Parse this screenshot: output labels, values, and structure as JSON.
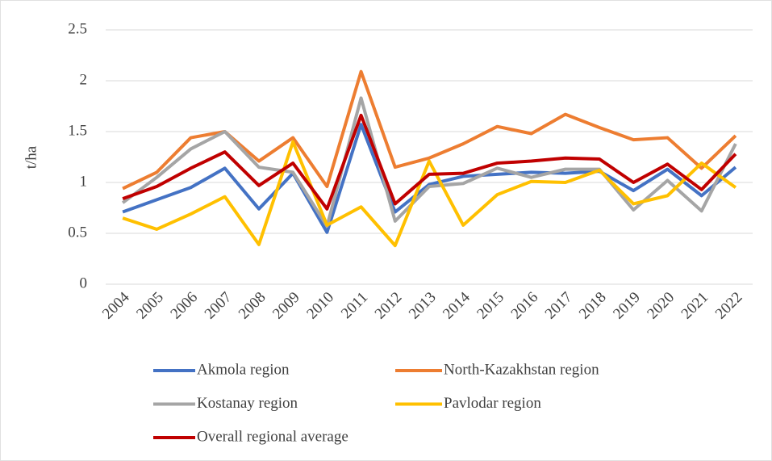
{
  "chart_data": {
    "type": "line",
    "y_label": "t/ha",
    "categories": [
      "2004",
      "2005",
      "2006",
      "2007",
      "2008",
      "2009",
      "2010",
      "2011",
      "2012",
      "2013",
      "2014",
      "2015",
      "2016",
      "2017",
      "2018",
      "2019",
      "2020",
      "2021",
      "2022"
    ],
    "ylim": [
      0,
      2.5
    ],
    "yticks": [
      0,
      0.5,
      1,
      1.5,
      2,
      2.5
    ],
    "grid": true,
    "legend": "bottom",
    "series": [
      {
        "name": "Akmola region",
        "color": "#4472c4",
        "values": [
          0.71,
          0.83,
          0.95,
          1.14,
          0.74,
          1.09,
          0.51,
          1.57,
          0.71,
          0.98,
          1.06,
          1.08,
          1.1,
          1.09,
          1.11,
          0.92,
          1.13,
          0.87,
          1.15
        ]
      },
      {
        "name": "North-Kazakhstan region",
        "color": "#ed7d31",
        "values": [
          0.94,
          1.1,
          1.44,
          1.5,
          1.21,
          1.44,
          0.96,
          2.09,
          1.15,
          1.24,
          1.38,
          1.55,
          1.48,
          1.67,
          1.54,
          1.42,
          1.44,
          1.14,
          1.46
        ]
      },
      {
        "name": "Kostanay region",
        "color": "#a5a5a5",
        "values": [
          0.8,
          1.05,
          1.33,
          1.5,
          1.15,
          1.1,
          0.57,
          1.83,
          0.62,
          0.96,
          0.99,
          1.14,
          1.05,
          1.13,
          1.13,
          0.73,
          1.02,
          0.72,
          1.38
        ]
      },
      {
        "name": "Pavlodar region",
        "color": "#ffc000",
        "values": [
          0.65,
          0.54,
          0.69,
          0.86,
          0.39,
          1.4,
          0.58,
          0.76,
          0.38,
          1.21,
          0.58,
          0.88,
          1.01,
          1.0,
          1.12,
          0.79,
          0.87,
          1.19,
          0.95
        ]
      },
      {
        "name": "Overall regional average",
        "color": "#c00000",
        "values": [
          0.84,
          0.96,
          1.14,
          1.3,
          0.97,
          1.19,
          0.74,
          1.66,
          0.79,
          1.08,
          1.09,
          1.19,
          1.21,
          1.24,
          1.23,
          1.0,
          1.18,
          0.93,
          1.28
        ]
      }
    ]
  }
}
